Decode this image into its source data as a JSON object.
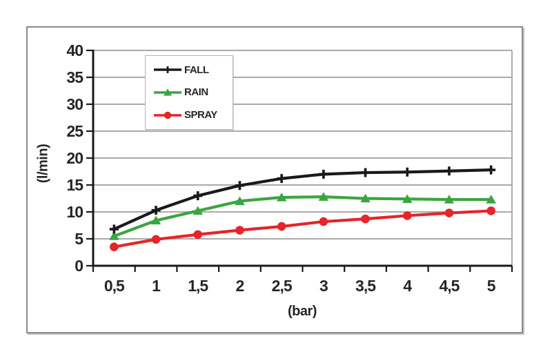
{
  "chart_data": {
    "type": "line",
    "title": "",
    "xlabel": "(bar)",
    "ylabel": "(l/min)",
    "categories": [
      "0,5",
      "1",
      "1,5",
      "2",
      "2,5",
      "3",
      "3,5",
      "4",
      "4,5",
      "5"
    ],
    "series": [
      {
        "name": "FALL",
        "color": "#1a1a1a",
        "marker": "plus",
        "values": [
          6.8,
          10.3,
          13.0,
          14.9,
          16.2,
          17.0,
          17.3,
          17.4,
          17.6,
          17.8
        ]
      },
      {
        "name": "RAIN",
        "color": "#3aa63f",
        "marker": "triangle",
        "values": [
          5.5,
          8.4,
          10.2,
          12.0,
          12.7,
          12.8,
          12.5,
          12.4,
          12.3,
          12.3
        ]
      },
      {
        "name": "SPRAY",
        "color": "#e52528",
        "marker": "circle",
        "values": [
          3.5,
          4.9,
          5.8,
          6.6,
          7.3,
          8.2,
          8.7,
          9.3,
          9.8,
          10.2
        ]
      }
    ],
    "ylim": [
      0,
      40
    ],
    "ytick_step": 5,
    "grid": true,
    "legend_position": "top-left-inside"
  },
  "colors": {
    "gridline": "#9e9e9e",
    "axis": "#1a1a1a",
    "text": "#262626",
    "frame_border": "#8a8a8a",
    "legend_border": "#b4b4b4",
    "background": "#ffffff"
  }
}
